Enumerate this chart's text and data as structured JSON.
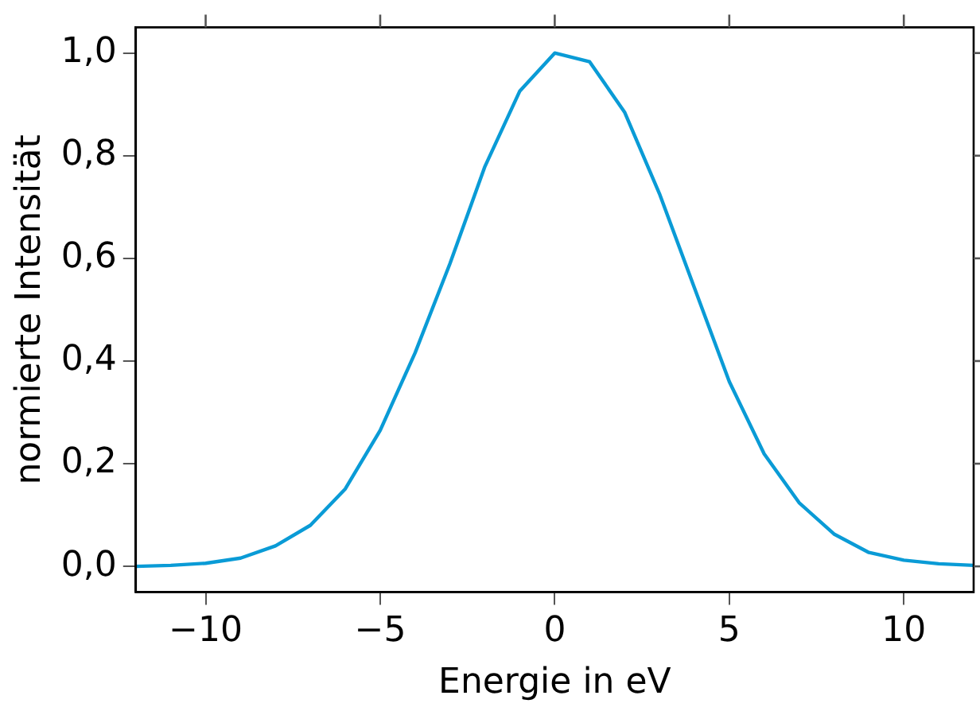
{
  "chart_data": {
    "type": "line",
    "xlabel": "Energie in eV",
    "ylabel": "normierte Intensität",
    "x": [
      -12,
      -11,
      -10,
      -9,
      -8,
      -7,
      -6,
      -5,
      -4,
      -3,
      -2,
      -1,
      0,
      1,
      2,
      3,
      4,
      5,
      6,
      7,
      8,
      9,
      10,
      11,
      12
    ],
    "series": [
      {
        "color": "#0a9bd6",
        "values": [
          0,
          0.002,
          0.006,
          0.016,
          0.04,
          0.08,
          0.151,
          0.265,
          0.416,
          0.59,
          0.779,
          0.926,
          1.0,
          0.983,
          0.885,
          0.726,
          0.543,
          0.36,
          0.219,
          0.124,
          0.063,
          0.027,
          0.012,
          0.005,
          0.002
        ]
      }
    ],
    "xlim": [
      -12,
      12
    ],
    "ylim": [
      -0.05,
      1.05
    ],
    "xticks": [
      {
        "value": -10,
        "label": "−10"
      },
      {
        "value": -5,
        "label": "−5"
      },
      0,
      5,
      10
    ],
    "yticks": [
      {
        "value": 0,
        "label": "0,0"
      },
      {
        "value": 0.2,
        "label": "0,2"
      },
      {
        "value": 0.4,
        "label": "0,4"
      },
      {
        "value": 0.6,
        "label": "0,6"
      },
      {
        "value": 0.8,
        "label": "0,8"
      },
      {
        "value": 1,
        "label": "1,0"
      }
    ],
    "grid": false,
    "legend": false,
    "marker": "none",
    "line_style": "solid"
  }
}
